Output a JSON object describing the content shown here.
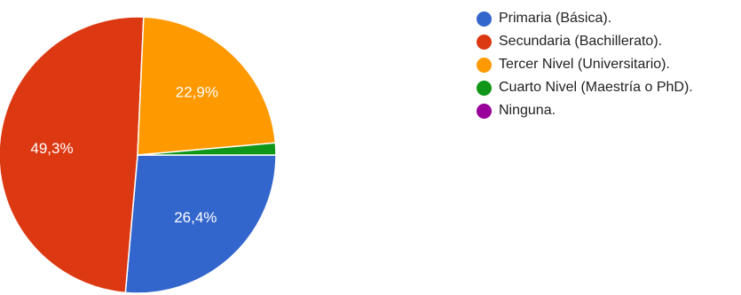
{
  "chart_data": {
    "type": "pie",
    "categories": [
      "Primaria (Básica).",
      "Secundaria (Bachillerato).",
      "Tercer Nivel (Universitario).",
      "Cuarto Nivel (Maestría o PhD).",
      "Ninguna."
    ],
    "values": [
      26.4,
      49.3,
      22.9,
      1.4,
      0
    ],
    "labels": [
      "26,4%",
      "49,3%",
      "22,9%",
      "",
      ""
    ],
    "colors": [
      "#3366cc",
      "#dc3912",
      "#ff9900",
      "#109618",
      "#990099"
    ],
    "legend": "right",
    "start_angle_deg": 90,
    "direction": "clockwise"
  }
}
